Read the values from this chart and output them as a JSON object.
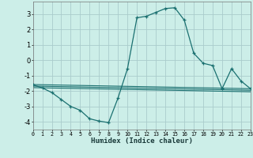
{
  "xlabel": "Humidex (Indice chaleur)",
  "background_color": "#cceee8",
  "grid_color": "#aacccc",
  "line_color": "#1a7070",
  "xlim": [
    0,
    23
  ],
  "ylim": [
    -4.5,
    3.8
  ],
  "yticks": [
    -4,
    -3,
    -2,
    -1,
    0,
    1,
    2,
    3
  ],
  "xticks": [
    0,
    1,
    2,
    3,
    4,
    5,
    6,
    7,
    8,
    9,
    10,
    11,
    12,
    13,
    14,
    15,
    16,
    17,
    18,
    19,
    20,
    21,
    22,
    23
  ],
  "main_x": [
    0,
    1,
    2,
    3,
    4,
    5,
    6,
    7,
    8,
    9,
    10,
    11,
    12,
    13,
    14,
    15,
    16,
    17,
    18,
    19,
    20,
    21,
    22,
    23
  ],
  "main_y": [
    -1.6,
    -1.8,
    -2.1,
    -2.55,
    -3.0,
    -3.25,
    -3.8,
    -3.95,
    -4.05,
    -2.45,
    -0.55,
    2.75,
    2.85,
    3.1,
    3.35,
    3.4,
    2.6,
    0.45,
    -0.2,
    -0.35,
    -1.85,
    -0.55,
    -1.35,
    -1.85
  ],
  "trend_lines": [
    {
      "x": [
        0,
        23
      ],
      "y": [
        -1.58,
        -1.85
      ]
    },
    {
      "x": [
        0,
        23
      ],
      "y": [
        -1.68,
        -1.95
      ]
    },
    {
      "x": [
        0,
        23
      ],
      "y": [
        -1.78,
        -2.05
      ]
    }
  ]
}
